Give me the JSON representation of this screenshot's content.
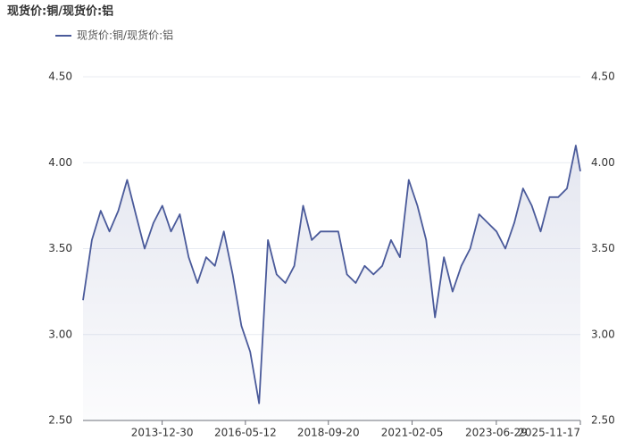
{
  "chart_data": {
    "type": "line",
    "title": "现货价:铜/现货价:铝",
    "x": [
      "2011-10-01",
      "2012-01-01",
      "2012-04-01",
      "2012-07-01",
      "2012-10-01",
      "2013-01-01",
      "2013-04-01",
      "2013-07-01",
      "2013-10-01",
      "2014-01-01",
      "2014-04-01",
      "2014-07-01",
      "2014-10-01",
      "2015-01-01",
      "2015-04-01",
      "2015-07-01",
      "2015-10-01",
      "2016-01-01",
      "2016-04-01",
      "2016-07-01",
      "2016-10-01",
      "2017-01-01",
      "2017-04-01",
      "2017-07-01",
      "2017-10-01",
      "2018-01-01",
      "2018-04-01",
      "2018-07-01",
      "2018-10-01",
      "2019-01-01",
      "2019-04-01",
      "2019-07-01",
      "2019-10-01",
      "2020-01-01",
      "2020-04-01",
      "2020-07-01",
      "2020-10-01",
      "2021-01-01",
      "2021-04-01",
      "2021-07-01",
      "2021-10-01",
      "2022-01-01",
      "2022-04-01",
      "2022-07-01",
      "2022-10-01",
      "2023-01-01",
      "2023-04-01",
      "2023-07-01",
      "2023-10-01",
      "2024-01-01",
      "2024-04-01",
      "2024-07-01",
      "2024-10-01",
      "2025-01-01",
      "2025-04-01",
      "2025-07-01",
      "2025-10-01",
      "2025-11-17"
    ],
    "series": [
      {
        "name": "现货价:铜/现货价:铝",
        "color": "#4a5a9a",
        "values": [
          3.2,
          3.55,
          3.72,
          3.6,
          3.72,
          3.9,
          3.7,
          3.5,
          3.65,
          3.75,
          3.6,
          3.7,
          3.45,
          3.3,
          3.45,
          3.4,
          3.6,
          3.35,
          3.05,
          2.9,
          2.6,
          3.55,
          3.35,
          3.3,
          3.4,
          3.75,
          3.55,
          3.6,
          3.6,
          3.6,
          3.35,
          3.3,
          3.4,
          3.35,
          3.4,
          3.55,
          3.45,
          3.9,
          3.75,
          3.55,
          3.1,
          3.45,
          3.25,
          3.4,
          3.5,
          3.7,
          3.65,
          3.6,
          3.5,
          3.65,
          3.85,
          3.75,
          3.6,
          3.8,
          3.8,
          3.85,
          4.1,
          3.95
        ]
      }
    ],
    "xlim": [
      "2011-10-01",
      "2025-11-17"
    ],
    "xticks": [
      "2013-12-30",
      "2016-05-12",
      "2018-09-20",
      "2021-02-05",
      "2023-06-29",
      "2025-11-17"
    ],
    "ylim": [
      2.5,
      4.5
    ],
    "yticks": [
      {
        "value": 2.5,
        "label": "2.50"
      },
      {
        "value": 3,
        "label": "3.00"
      },
      {
        "value": 3.5,
        "label": "3.50"
      },
      {
        "value": 4,
        "label": "4.00"
      },
      {
        "value": 4.5,
        "label": "4.50"
      }
    ],
    "y2lim": [
      2.5,
      4.5
    ],
    "y2ticks": [
      {
        "value": 2.5,
        "label": "2.50"
      },
      {
        "value": 3,
        "label": "3.00"
      },
      {
        "value": 3.5,
        "label": "3.50"
      },
      {
        "value": 4,
        "label": "4.00"
      },
      {
        "value": 4.5,
        "label": "4.50"
      }
    ],
    "grid": true
  }
}
